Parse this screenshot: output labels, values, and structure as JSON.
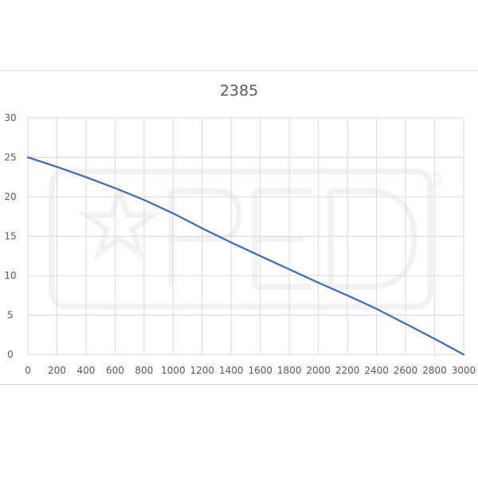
{
  "chart_data": {
    "type": "line",
    "title": "2385",
    "xlabel": "",
    "ylabel": "",
    "xlim": [
      0,
      3000
    ],
    "ylim": [
      0,
      30
    ],
    "x_ticks": [
      "0",
      "200",
      "400",
      "600",
      "800",
      "1000",
      "1200",
      "1400",
      "1600",
      "1800",
      "2000",
      "2200",
      "2400",
      "2600",
      "2800",
      "3000"
    ],
    "y_ticks": [
      "0",
      "5",
      "10",
      "15",
      "20",
      "25",
      "30"
    ],
    "grid": true,
    "series": [
      {
        "color": "#3f6db4",
        "x": [
          0,
          200,
          400,
          600,
          800,
          1000,
          1200,
          1400,
          1600,
          1800,
          2000,
          2200,
          2400,
          2600,
          2800,
          3000
        ],
        "y": [
          25,
          23.8,
          22.5,
          21.1,
          19.6,
          17.9,
          16.0,
          14.2,
          12.5,
          10.8,
          9.1,
          7.5,
          5.8,
          3.9,
          2.0,
          0
        ]
      }
    ]
  }
}
